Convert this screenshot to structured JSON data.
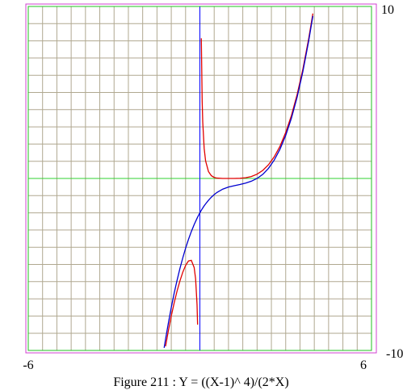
{
  "chart_data": {
    "type": "line",
    "title": "Figure 211 : Y = ((X-1)^ 4)/(2*X)",
    "x": [
      -1.25,
      -1.2,
      -1.1,
      -1,
      -0.9,
      -0.8,
      -0.7,
      -0.6,
      -0.5,
      -0.4,
      -0.3,
      -0.2,
      -0.15,
      -0.1,
      -0.08,
      0,
      0.05,
      0.08,
      0.1,
      0.15,
      0.2,
      0.3,
      0.4,
      0.5,
      0.6,
      0.8,
      1,
      1.2,
      1.4,
      1.6,
      1.8,
      2,
      2.2,
      2.4,
      2.6,
      2.8,
      3,
      3.2,
      3.4,
      3.6,
      3.8,
      3.95
    ],
    "series": [
      {
        "color": "#e00000",
        "values": [
          null,
          -9.76,
          -8.84,
          -8,
          -7.24,
          -6.56,
          -5.97,
          -5.46,
          -5.06,
          -4.8,
          -4.76,
          -5.18,
          -5.83,
          -7.32,
          -8.5,
          null,
          8.15,
          4.48,
          3.28,
          1.74,
          1.02,
          0.4,
          0.16,
          0.06,
          0.02,
          0.001,
          0,
          0.0007,
          0.009,
          0.04,
          0.11,
          0.25,
          0.47,
          0.8,
          1.26,
          1.87,
          2.67,
          3.66,
          4.88,
          6.35,
          8.09,
          9.59
        ]
      },
      {
        "color": "#0000d0",
        "values": [
          -9.85,
          -9.34,
          -8.39,
          -7.5,
          -6.68,
          -5.94,
          -5.25,
          -4.63,
          -4.06,
          -3.55,
          -3.09,
          -2.68,
          -2.5,
          -2.32,
          -2.25,
          -2,
          -1.85,
          -1.77,
          -1.72,
          -1.59,
          -1.48,
          -1.27,
          -1.09,
          -0.94,
          -0.81,
          -0.62,
          -0.5,
          -0.42,
          -0.35,
          -0.27,
          -0.16,
          0,
          0.24,
          0.59,
          1.07,
          1.7,
          2.5,
          3.5,
          4.73,
          6.21,
          7.96,
          9.45
        ]
      }
    ],
    "xlim": [
      -6,
      6
    ],
    "ylim": [
      -10,
      10
    ],
    "xticks": [
      -6,
      6
    ],
    "yticks": [
      -10,
      10
    ],
    "grid": true,
    "grid_step": {
      "x": 0.5,
      "y": 1
    }
  }
}
